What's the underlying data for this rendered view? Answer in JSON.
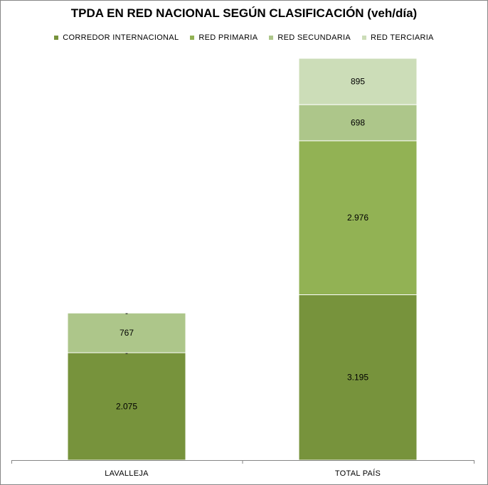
{
  "chart_data": {
    "type": "bar",
    "stacked": true,
    "title": "TPDA EN RED NACIONAL SEGÚN CLASIFICACIÓN (veh/día)",
    "categories": [
      "LAVALLEJA",
      "TOTAL PAÍS"
    ],
    "series": [
      {
        "name": "CORREDOR INTERNACIONAL",
        "color": "#77933C",
        "values": [
          2075,
          3195
        ],
        "labels": [
          "2.075",
          "3.195"
        ]
      },
      {
        "name": "RED PRIMARIA",
        "color": "#92B254",
        "values": [
          0,
          2976
        ],
        "labels": [
          "-",
          "2.976"
        ]
      },
      {
        "name": "RED SECUNDARIA",
        "color": "#ADC68A",
        "values": [
          767,
          698
        ],
        "labels": [
          "767",
          "698"
        ]
      },
      {
        "name": "RED TERCIARIA",
        "color": "#CCDDB8",
        "values": [
          0,
          895
        ],
        "labels": [
          "-",
          "895"
        ]
      }
    ],
    "legend_position": "top",
    "grid": false
  }
}
